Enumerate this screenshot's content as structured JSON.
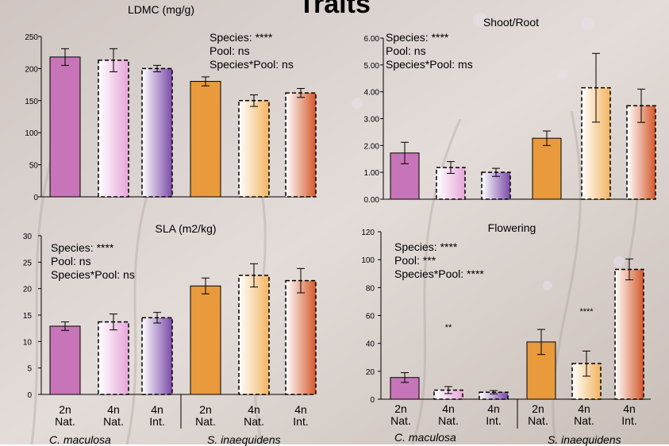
{
  "slide": {
    "title": "Traits"
  },
  "colors": {
    "cm_2n": "#c774b8",
    "cm_4n_nat": "#e6a6d9",
    "cm_4n_int": "#7a4aa8",
    "si_2n": "#e89a3c",
    "si_4n_nat": "#f2b460",
    "si_4n_int": "#d4582a",
    "error_bar": "#000000"
  },
  "group_labels": {
    "categories": [
      "2n Nat.",
      "4n Nat.",
      "4n Int.",
      "2n Nat.",
      "4n Nat.",
      "4n Int."
    ],
    "lines": [
      [
        "2n",
        "Nat."
      ],
      [
        "4n",
        "Nat."
      ],
      [
        "4n",
        "Int."
      ],
      [
        "2n",
        "Nat."
      ],
      [
        "4n",
        "Nat."
      ],
      [
        "4n",
        "Int."
      ]
    ],
    "species": [
      "C. maculosa",
      "S. inaequidens"
    ]
  },
  "chart_data": [
    {
      "type": "bar",
      "title": "LDMC (mg/g)",
      "categories": [
        "2n Nat.",
        "4n Nat.",
        "4n Int.",
        "2n Nat.",
        "4n Nat.",
        "4n Int."
      ],
      "values": [
        218,
        213,
        200,
        180,
        150,
        162
      ],
      "errors": [
        13,
        18,
        5,
        7,
        9,
        7
      ],
      "ylim": [
        0,
        250
      ],
      "yticks": [
        "0",
        "50",
        "100",
        "150",
        "200",
        "250"
      ],
      "annotations": [
        "Species: ****",
        "Pool: ns",
        "Species*Pool: ns"
      ]
    },
    {
      "type": "bar",
      "title": "Shoot/Root",
      "categories": [
        "2n Nat.",
        "4n Nat.",
        "4n Int.",
        "2n Nat.",
        "4n Nat.",
        "4n Int."
      ],
      "values": [
        1.72,
        1.18,
        1.0,
        2.27,
        4.15,
        3.48
      ],
      "errors": [
        0.4,
        0.22,
        0.15,
        0.27,
        1.28,
        0.62
      ],
      "ylim": [
        0,
        6
      ],
      "yticks": [
        "0.00",
        "1.00",
        "2.00",
        "3.00",
        "4.00",
        "5.00",
        "6.00"
      ],
      "annotations": [
        "Species: ****",
        "Pool: ns",
        "Species*Pool: ms"
      ]
    },
    {
      "type": "bar",
      "title": "SLA (m2/kg)",
      "categories": [
        "2n Nat.",
        "4n Nat.",
        "4n Int.",
        "2n Nat.",
        "4n Nat.",
        "4n Int."
      ],
      "values": [
        12.9,
        13.7,
        14.5,
        20.5,
        22.5,
        21.5
      ],
      "errors": [
        0.8,
        1.5,
        1.0,
        1.5,
        2.2,
        2.3
      ],
      "ylim": [
        0,
        30
      ],
      "yticks": [
        "0",
        "5",
        "10",
        "15",
        "20",
        "25",
        "30"
      ],
      "annotations": [
        "Species: ****",
        "Pool: ns",
        "Species*Pool: ns"
      ]
    },
    {
      "type": "bar",
      "title": "Flowering",
      "categories": [
        "2n Nat.",
        "4n Nat.",
        "4n Int.",
        "2n Nat.",
        "4n Nat.",
        "4n Int."
      ],
      "values": [
        15.5,
        6.5,
        5,
        41,
        25.5,
        93
      ],
      "errors": [
        3.5,
        2.5,
        1.2,
        9,
        9,
        7.5
      ],
      "ylim": [
        0,
        120
      ],
      "yticks": [
        "0",
        "20",
        "40",
        "60",
        "80",
        "100",
        "120"
      ],
      "annotations": [
        "Species: ****",
        "Pool: ***",
        "Species*Pool: ****"
      ],
      "bar_annotations": [
        {
          "index": 1,
          "text": "**"
        },
        {
          "index": 4,
          "text": "****"
        }
      ]
    }
  ]
}
